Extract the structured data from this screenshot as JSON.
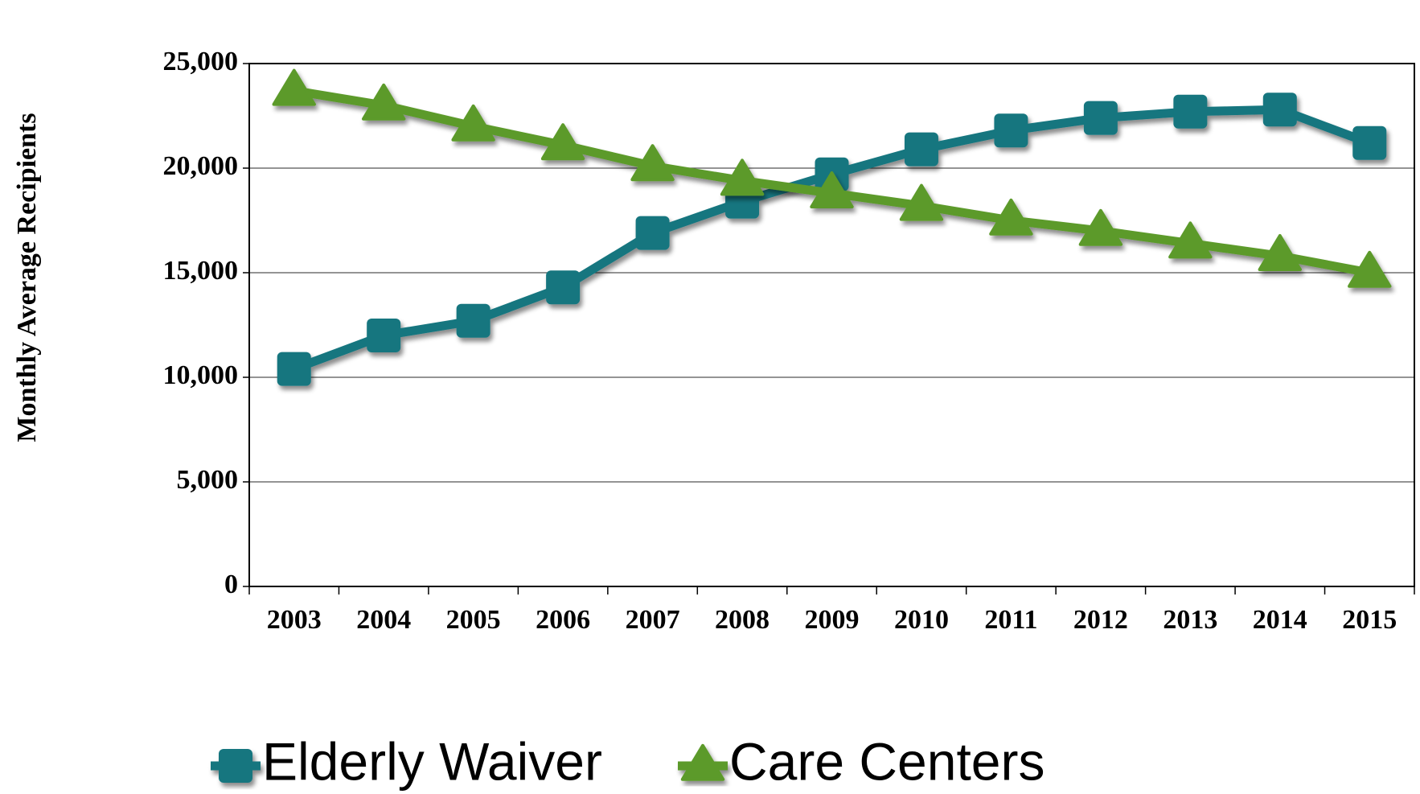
{
  "chart_data": {
    "type": "line",
    "y_label": "Monthly Average Recipients",
    "categories": [
      "2003",
      "2004",
      "2005",
      "2006",
      "2007",
      "2008",
      "2009",
      "2010",
      "2011",
      "2012",
      "2013",
      "2014",
      "2015"
    ],
    "series": [
      {
        "name": "Elderly Waiver",
        "color": "#17767f",
        "marker": "square",
        "values": [
          10400,
          12000,
          12700,
          14300,
          16900,
          18400,
          19700,
          20900,
          21800,
          22400,
          22700,
          22800,
          21200
        ]
      },
      {
        "name": "Care Centers",
        "color": "#5b9a2b",
        "marker": "triangle",
        "values": [
          23700,
          23000,
          22000,
          21100,
          20100,
          19400,
          18800,
          18200,
          17500,
          17000,
          16400,
          15800,
          15000
        ]
      }
    ],
    "ylim": [
      0,
      25000
    ],
    "yticks": [
      0,
      {
        "value": 5000,
        "label": "5,000"
      },
      {
        "value": 10000,
        "label": "10,000"
      },
      {
        "value": 15000,
        "label": "15,000"
      },
      {
        "value": 20000,
        "label": "20,000"
      },
      {
        "value": 25000,
        "label": "25,000"
      }
    ],
    "grid": true,
    "legend": "bottom"
  }
}
